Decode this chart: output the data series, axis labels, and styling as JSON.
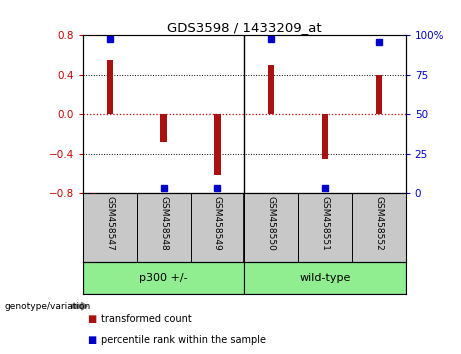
{
  "title": "GDS3598 / 1433209_at",
  "samples": [
    "GSM458547",
    "GSM458548",
    "GSM458549",
    "GSM458550",
    "GSM458551",
    "GSM458552"
  ],
  "transformed_counts": [
    0.55,
    -0.28,
    -0.62,
    0.5,
    -0.46,
    0.4
  ],
  "percentile_ranks": [
    98,
    3,
    3,
    98,
    3,
    96
  ],
  "group_boundary": 2.5,
  "ylim_left": [
    -0.8,
    0.8
  ],
  "ylim_right": [
    0,
    100
  ],
  "yticks_left": [
    -0.8,
    -0.4,
    0,
    0.4,
    0.8
  ],
  "yticks_right": [
    0,
    25,
    50,
    75,
    100
  ],
  "ytick_labels_right": [
    "0",
    "25",
    "50",
    "75",
    "100%"
  ],
  "bar_color": "#AA1111",
  "percentile_color": "#0000CC",
  "zero_line_color": "#CC0000",
  "left_axis_color": "#CC0000",
  "right_axis_color": "#0000CC",
  "label_area_color": "#C8C8C8",
  "group1_label": "p300 +/-",
  "group2_label": "wild-type",
  "group_color": "#90EE90",
  "bar_width": 0.12,
  "genotype_label": "genotype/variation"
}
